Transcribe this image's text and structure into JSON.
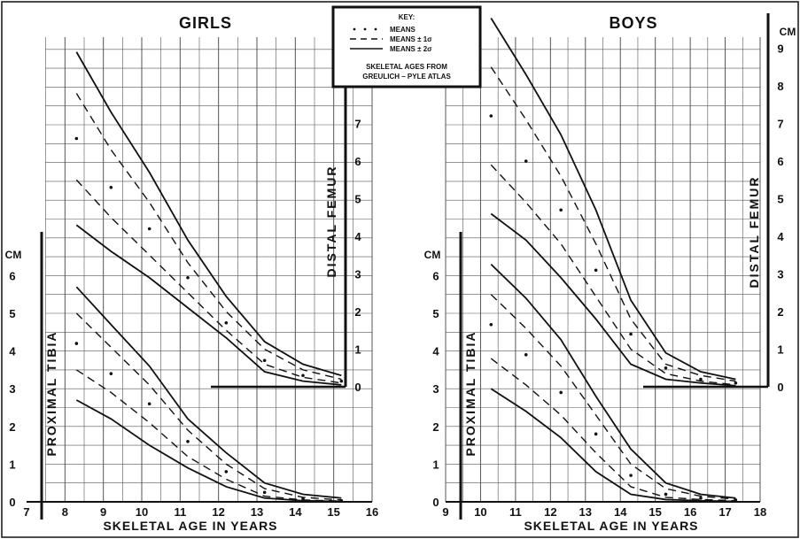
{
  "chart_data": [
    {
      "type": "line",
      "title": "GIRLS",
      "xlabel": "SKELETAL AGE IN YEARS",
      "x_ticks": [
        "7",
        "8",
        "9",
        "10",
        "11",
        "12",
        "13",
        "14",
        "15",
        "16"
      ],
      "xlim": [
        7,
        16
      ],
      "left_axis": {
        "label": "PROXIMAL TIBIA",
        "unit": "CM",
        "ticks": [
          "0",
          "1",
          "2",
          "3",
          "4",
          "5",
          "6"
        ],
        "range": [
          0,
          6
        ]
      },
      "right_axis": {
        "label": "DISTAL FEMUR",
        "ticks": [
          "0",
          "1",
          "2",
          "3",
          "4",
          "5",
          "6",
          "7"
        ],
        "range": [
          0,
          7
        ]
      },
      "groups": [
        {
          "name": "DISTAL FEMUR",
          "axis": "right",
          "series": [
            {
              "style": "upper_2sd",
              "x": [
                8.3,
                9.2,
                10.2,
                11.2,
                12.2,
                13.2,
                14.2,
                15.2
              ],
              "y": [
                8.9,
                7.3,
                5.7,
                3.9,
                2.4,
                1.2,
                0.6,
                0.3
              ]
            },
            {
              "style": "upper_1sd",
              "x": [
                8.3,
                9.2,
                10.2,
                11.2,
                12.2,
                13.2,
                14.2,
                15.2
              ],
              "y": [
                7.8,
                6.3,
                4.9,
                3.3,
                2.0,
                1.0,
                0.45,
                0.2
              ]
            },
            {
              "style": "mean",
              "x": [
                8.3,
                9.2,
                10.2,
                11.2,
                12.2,
                13.2,
                14.2,
                15.2
              ],
              "y": [
                6.6,
                5.3,
                4.2,
                2.9,
                1.7,
                0.7,
                0.3,
                0.15
              ]
            },
            {
              "style": "lower_1sd",
              "x": [
                8.3,
                9.2,
                10.2,
                11.2,
                12.2,
                13.2,
                14.2,
                15.2
              ],
              "y": [
                5.5,
                4.5,
                3.5,
                2.5,
                1.5,
                0.6,
                0.25,
                0.1
              ]
            },
            {
              "style": "lower_2sd",
              "x": [
                8.3,
                9.2,
                10.2,
                11.2,
                12.2,
                13.2,
                14.2,
                15.2
              ],
              "y": [
                4.3,
                3.6,
                2.9,
                2.1,
                1.3,
                0.4,
                0.15,
                0.05
              ]
            }
          ]
        },
        {
          "name": "PROXIMAL TIBIA",
          "axis": "left",
          "series": [
            {
              "style": "upper_2sd",
              "x": [
                8.3,
                9.2,
                10.2,
                11.2,
                12.2,
                13.2,
                14.2,
                15.2
              ],
              "y": [
                5.7,
                4.7,
                3.6,
                2.2,
                1.3,
                0.5,
                0.2,
                0.1
              ]
            },
            {
              "style": "upper_1sd",
              "x": [
                8.3,
                9.2,
                10.2,
                11.2,
                12.2,
                13.2,
                14.2,
                15.2
              ],
              "y": [
                5.0,
                4.1,
                3.1,
                1.9,
                1.0,
                0.35,
                0.12,
                0.05
              ]
            },
            {
              "style": "mean",
              "x": [
                8.3,
                9.2,
                10.2,
                11.2,
                12.2,
                13.2,
                14.2,
                15.2
              ],
              "y": [
                4.2,
                3.4,
                2.6,
                1.6,
                0.8,
                0.25,
                0.08,
                0.03
              ]
            },
            {
              "style": "lower_1sd",
              "x": [
                8.3,
                9.2,
                10.2,
                11.2,
                12.2,
                13.2,
                14.2,
                15.2
              ],
              "y": [
                3.5,
                2.9,
                2.1,
                1.2,
                0.6,
                0.15,
                0.05,
                0.02
              ]
            },
            {
              "style": "lower_2sd",
              "x": [
                8.3,
                9.2,
                10.2,
                11.2,
                12.2,
                13.2,
                14.2,
                15.2
              ],
              "y": [
                2.7,
                2.2,
                1.5,
                0.9,
                0.4,
                0.1,
                0.03,
                0.01
              ]
            }
          ]
        }
      ]
    },
    {
      "type": "line",
      "title": "BOYS",
      "xlabel": "SKELETAL AGE IN YEARS",
      "x_ticks": [
        "9",
        "10",
        "11",
        "12",
        "13",
        "14",
        "15",
        "16",
        "17",
        "18"
      ],
      "xlim": [
        9,
        18
      ],
      "left_axis": {
        "label": "PROXIMAL TIBIA",
        "unit": "CM",
        "ticks": [
          "0",
          "1",
          "2",
          "3",
          "4",
          "5",
          "6"
        ],
        "range": [
          0,
          6
        ]
      },
      "right_axis": {
        "label": "DISTAL FEMUR",
        "unit": "CM",
        "ticks": [
          "0",
          "1",
          "2",
          "3",
          "4",
          "5",
          "6",
          "7",
          "8",
          "9"
        ],
        "range": [
          0,
          9
        ]
      },
      "groups": [
        {
          "name": "DISTAL FEMUR",
          "axis": "right",
          "series": [
            {
              "style": "upper_2sd",
              "x": [
                10.3,
                11.3,
                12.3,
                13.3,
                14.3,
                15.3,
                16.3,
                17.3
              ],
              "y": [
                9.8,
                8.3,
                6.7,
                4.7,
                2.3,
                0.9,
                0.4,
                0.2
              ]
            },
            {
              "style": "upper_1sd",
              "x": [
                10.3,
                11.3,
                12.3,
                13.3,
                14.3,
                15.3,
                16.3,
                17.3
              ],
              "y": [
                8.5,
                7.1,
                5.6,
                3.8,
                1.8,
                0.6,
                0.3,
                0.15
              ]
            },
            {
              "style": "mean",
              "x": [
                10.3,
                11.3,
                12.3,
                13.3,
                14.3,
                15.3,
                16.3,
                17.3
              ],
              "y": [
                7.2,
                6.0,
                4.7,
                3.1,
                1.4,
                0.5,
                0.2,
                0.1
              ]
            },
            {
              "style": "lower_1sd",
              "x": [
                10.3,
                11.3,
                12.3,
                13.3,
                14.3,
                15.3,
                16.3,
                17.3
              ],
              "y": [
                5.9,
                4.9,
                3.8,
                2.4,
                1.0,
                0.35,
                0.15,
                0.05
              ]
            },
            {
              "style": "lower_2sd",
              "x": [
                10.3,
                11.3,
                12.3,
                13.3,
                14.3,
                15.3,
                16.3,
                17.3
              ],
              "y": [
                4.6,
                3.9,
                2.9,
                1.8,
                0.6,
                0.2,
                0.1,
                0.03
              ]
            }
          ]
        },
        {
          "name": "PROXIMAL TIBIA",
          "axis": "left",
          "series": [
            {
              "style": "upper_2sd",
              "x": [
                10.3,
                11.3,
                12.3,
                13.3,
                14.3,
                15.3,
                16.3,
                17.3
              ],
              "y": [
                6.3,
                5.4,
                4.3,
                2.8,
                1.4,
                0.5,
                0.2,
                0.1
              ]
            },
            {
              "style": "upper_1sd",
              "x": [
                10.3,
                11.3,
                12.3,
                13.3,
                14.3,
                15.3,
                16.3,
                17.3
              ],
              "y": [
                5.5,
                4.6,
                3.6,
                2.3,
                1.0,
                0.35,
                0.15,
                0.07
              ]
            },
            {
              "style": "mean",
              "x": [
                10.3,
                11.3,
                12.3,
                13.3,
                14.3,
                15.3,
                16.3,
                17.3
              ],
              "y": [
                4.7,
                3.9,
                2.9,
                1.8,
                0.7,
                0.2,
                0.1,
                0.05
              ]
            },
            {
              "style": "lower_1sd",
              "x": [
                10.3,
                11.3,
                12.3,
                13.3,
                14.3,
                15.3,
                16.3,
                17.3
              ],
              "y": [
                3.8,
                3.1,
                2.3,
                1.3,
                0.4,
                0.12,
                0.06,
                0.03
              ]
            },
            {
              "style": "lower_2sd",
              "x": [
                10.3,
                11.3,
                12.3,
                13.3,
                14.3,
                15.3,
                16.3,
                17.3
              ],
              "y": [
                3.0,
                2.4,
                1.7,
                0.8,
                0.2,
                0.06,
                0.03,
                0.01
              ]
            }
          ]
        }
      ]
    }
  ],
  "key": {
    "title": "KEY:",
    "entries": [
      {
        "style": "mean",
        "label": "MEANS"
      },
      {
        "style": "sd1",
        "label": "MEANS ± 1σ"
      },
      {
        "style": "sd2",
        "label": "MEANS ± 2σ"
      }
    ],
    "footnote_line1": "SKELETAL AGES FROM",
    "footnote_line2": "GREULICH – PYLE ATLAS"
  },
  "colors": {
    "ink": "#111111",
    "grid": "#555555",
    "paper": "#ffffff"
  }
}
